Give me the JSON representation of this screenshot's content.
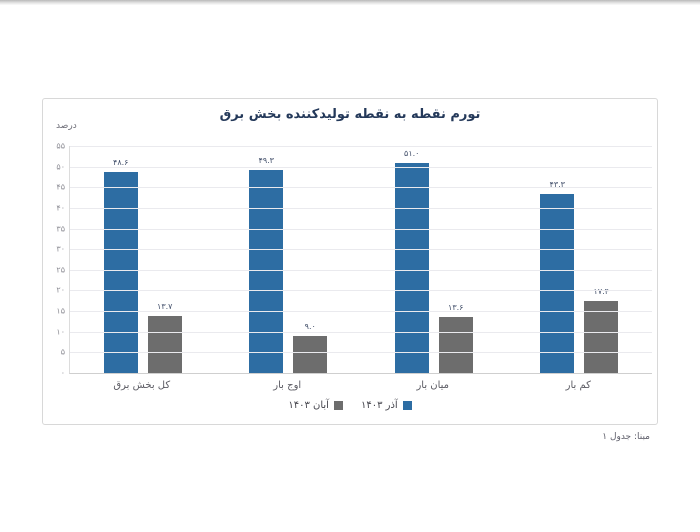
{
  "page": {
    "source_note": "مبنا: جدول ۱"
  },
  "chart": {
    "title": "تورم نقطه به نقطه تولیدکننده بخش برق",
    "unit_label": "درصد"
  },
  "chart_data": {
    "type": "bar",
    "title": "تورم نقطه به نقطه تولیدکننده بخش برق",
    "xlabel": "",
    "ylabel": "درصد",
    "ylim": [
      0,
      55
    ],
    "ytick_step": 5,
    "ytick_labels": [
      "۰",
      "۵",
      "۱۰",
      "۱۵",
      "۲۰",
      "۲۵",
      "۳۰",
      "۳۵",
      "۴۰",
      "۴۵",
      "۵۰",
      "۵۵"
    ],
    "grid": true,
    "legend_position": "bottom",
    "categories": [
      "کل بخش برق",
      "اوج بار",
      "میان بار",
      "کم بار"
    ],
    "series": [
      {
        "name": "آذر ۱۴۰۳",
        "color": "#2d6da3",
        "values": [
          48.6,
          49.3,
          51.0,
          43.3
        ],
        "labels": [
          "۴۸.۶",
          "۴۹.۳",
          "۵۱.۰",
          "۴۳.۳"
        ]
      },
      {
        "name": "آبان ۱۴۰۳",
        "color": "#6d6d6d",
        "values": [
          13.7,
          9.0,
          13.6,
          17.4
        ],
        "labels": [
          "۱۳.۷",
          "۹.۰",
          "۱۳.۶",
          "۱۷.۴"
        ]
      }
    ]
  }
}
